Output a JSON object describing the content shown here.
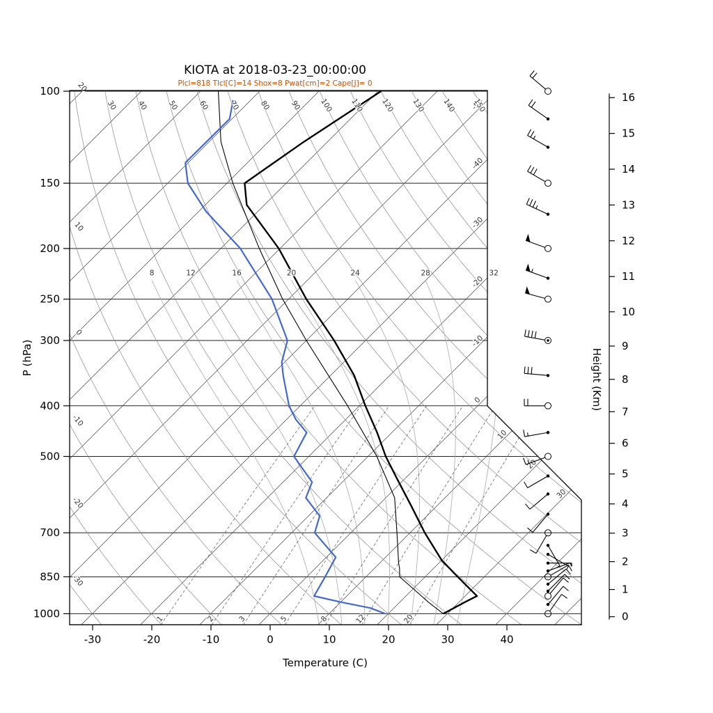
{
  "chart_data": {
    "type": "skewt",
    "title": "KIOTA at 2018-03-23_00:00:00",
    "subtitle": "Plcl=818 Tlcl[C]=14 Shox=8 Pwat[cm]=2 Cape[J]= 0",
    "x_axis": {
      "label": "Temperature (C)",
      "ticks": [
        -30,
        -20,
        -10,
        0,
        10,
        20,
        30,
        40
      ]
    },
    "y_axis": {
      "label": "P (hPa)",
      "ticks": [
        100,
        150,
        200,
        250,
        300,
        400,
        500,
        700,
        850,
        1000
      ]
    },
    "height_axis": {
      "label": "Height (Km)",
      "ticks": [
        0,
        1,
        2,
        3,
        4,
        5,
        6,
        7,
        8,
        9,
        10,
        11,
        12,
        13,
        14,
        15,
        16
      ]
    },
    "isotherms": {
      "start": -120,
      "end": 50,
      "step": 10,
      "labeled": [
        -50,
        -40,
        -30,
        -20,
        -10,
        0,
        10,
        20,
        30
      ]
    },
    "dry_adiabats": {
      "start": -30,
      "end": 160,
      "step": 10
    },
    "moist_adiabats": {
      "values": [
        8,
        12,
        16,
        20,
        24,
        28,
        32
      ]
    },
    "mixing_ratio": {
      "values": [
        1,
        2,
        3,
        5,
        8,
        12,
        20
      ]
    },
    "temperature_profile": [
      [
        1000,
        29.3
      ],
      [
        950,
        31
      ],
      [
        925,
        32
      ],
      [
        850,
        25.5
      ],
      [
        790,
        20
      ],
      [
        700,
        12.5
      ],
      [
        620,
        5.5
      ],
      [
        550,
        -1.5
      ],
      [
        500,
        -7
      ],
      [
        450,
        -12.5
      ],
      [
        400,
        -19
      ],
      [
        350,
        -26
      ],
      [
        300,
        -35.3
      ],
      [
        250,
        -47
      ],
      [
        200,
        -60.2
      ],
      [
        165,
        -73
      ],
      [
        150,
        -77
      ],
      [
        125,
        -74
      ],
      [
        100,
        -69.5
      ]
    ],
    "dewpoint_profile": [
      [
        1000,
        19.5
      ],
      [
        975,
        16
      ],
      [
        950,
        10
      ],
      [
        925,
        4.5
      ],
      [
        850,
        3.1
      ],
      [
        780,
        1.6
      ],
      [
        700,
        -6.1
      ],
      [
        650,
        -8.1
      ],
      [
        600,
        -13.5
      ],
      [
        560,
        -15.1
      ],
      [
        500,
        -22.5
      ],
      [
        450,
        -24.4
      ],
      [
        425,
        -28.4
      ],
      [
        400,
        -31.9
      ],
      [
        350,
        -38
      ],
      [
        330,
        -40.5
      ],
      [
        300,
        -43.2
      ],
      [
        250,
        -52.8
      ],
      [
        200,
        -66.7
      ],
      [
        170,
        -78.7
      ],
      [
        150,
        -86.6
      ],
      [
        137,
        -90.5
      ],
      [
        113,
        -90.4
      ],
      [
        104,
        -93
      ]
    ],
    "parcel_profile": [
      [
        1000,
        29.3
      ],
      [
        950,
        24.8
      ],
      [
        900,
        20.4
      ],
      [
        850,
        15.7
      ],
      [
        818,
        14.2
      ],
      [
        800,
        13.2
      ],
      [
        700,
        7.8
      ],
      [
        600,
        1.5
      ],
      [
        500,
        -8.5
      ],
      [
        400,
        -22
      ],
      [
        300,
        -40
      ],
      [
        250,
        -51
      ],
      [
        200,
        -63.5
      ],
      [
        150,
        -79
      ],
      [
        125,
        -88
      ],
      [
        100,
        -97
      ]
    ],
    "wind_barbs": [
      {
        "p": 100,
        "dir": 310,
        "spd": 20,
        "marker": "circle"
      },
      {
        "p": 113,
        "dir": 305,
        "spd": 20,
        "marker": "dot"
      },
      {
        "p": 128,
        "dir": 300,
        "spd": 25,
        "marker": "dot"
      },
      {
        "p": 150,
        "dir": 300,
        "spd": 30,
        "marker": "circle"
      },
      {
        "p": 172,
        "dir": 295,
        "spd": 35,
        "marker": "dot"
      },
      {
        "p": 200,
        "dir": 290,
        "spd": 50,
        "marker": "circle"
      },
      {
        "p": 228,
        "dir": 290,
        "spd": 55,
        "marker": "dot"
      },
      {
        "p": 250,
        "dir": 285,
        "spd": 50,
        "marker": "circle"
      },
      {
        "p": 300,
        "dir": 280,
        "spd": 40,
        "marker": "circle2"
      },
      {
        "p": 350,
        "dir": 275,
        "spd": 30,
        "marker": "dot"
      },
      {
        "p": 400,
        "dir": 270,
        "spd": 20,
        "marker": "circle"
      },
      {
        "p": 450,
        "dir": 260,
        "spd": 15,
        "marker": "dot"
      },
      {
        "p": 500,
        "dir": 250,
        "spd": 15,
        "marker": "circle"
      },
      {
        "p": 545,
        "dir": 240,
        "spd": 10,
        "marker": "dot"
      },
      {
        "p": 590,
        "dir": 230,
        "spd": 10,
        "marker": "dot"
      },
      {
        "p": 645,
        "dir": 220,
        "spd": 10,
        "marker": "dot"
      },
      {
        "p": 700,
        "dir": 210,
        "spd": 10,
        "marker": "circle"
      },
      {
        "p": 740,
        "dir": 150,
        "spd": 5,
        "marker": "dot"
      },
      {
        "p": 770,
        "dir": 120,
        "spd": 5,
        "marker": "dot"
      },
      {
        "p": 800,
        "dir": 90,
        "spd": 5,
        "marker": "dot"
      },
      {
        "p": 828,
        "dir": 70,
        "spd": 8,
        "marker": "dot"
      },
      {
        "p": 850,
        "dir": 60,
        "spd": 10,
        "marker": "circle"
      },
      {
        "p": 878,
        "dir": 50,
        "spd": 10,
        "marker": "dot"
      },
      {
        "p": 905,
        "dir": 45,
        "spd": 10,
        "marker": "dot"
      },
      {
        "p": 925,
        "dir": 40,
        "spd": 10,
        "marker": "circle"
      },
      {
        "p": 960,
        "dir": 40,
        "spd": 10,
        "marker": "dot"
      },
      {
        "p": 1000,
        "dir": 35,
        "spd": 10,
        "marker": "circle"
      }
    ],
    "colors": {
      "temperature": "#000000",
      "dewpoint": "#4169cd",
      "parcel": "#000000",
      "subtitle": "#c65102",
      "isobar": "#222222",
      "isotherm": "#444444",
      "dry_adiabat": "#888888",
      "moist_adiabat": "#aaaaaa",
      "mixing_ratio": "#666666",
      "barb": "#000000"
    }
  }
}
